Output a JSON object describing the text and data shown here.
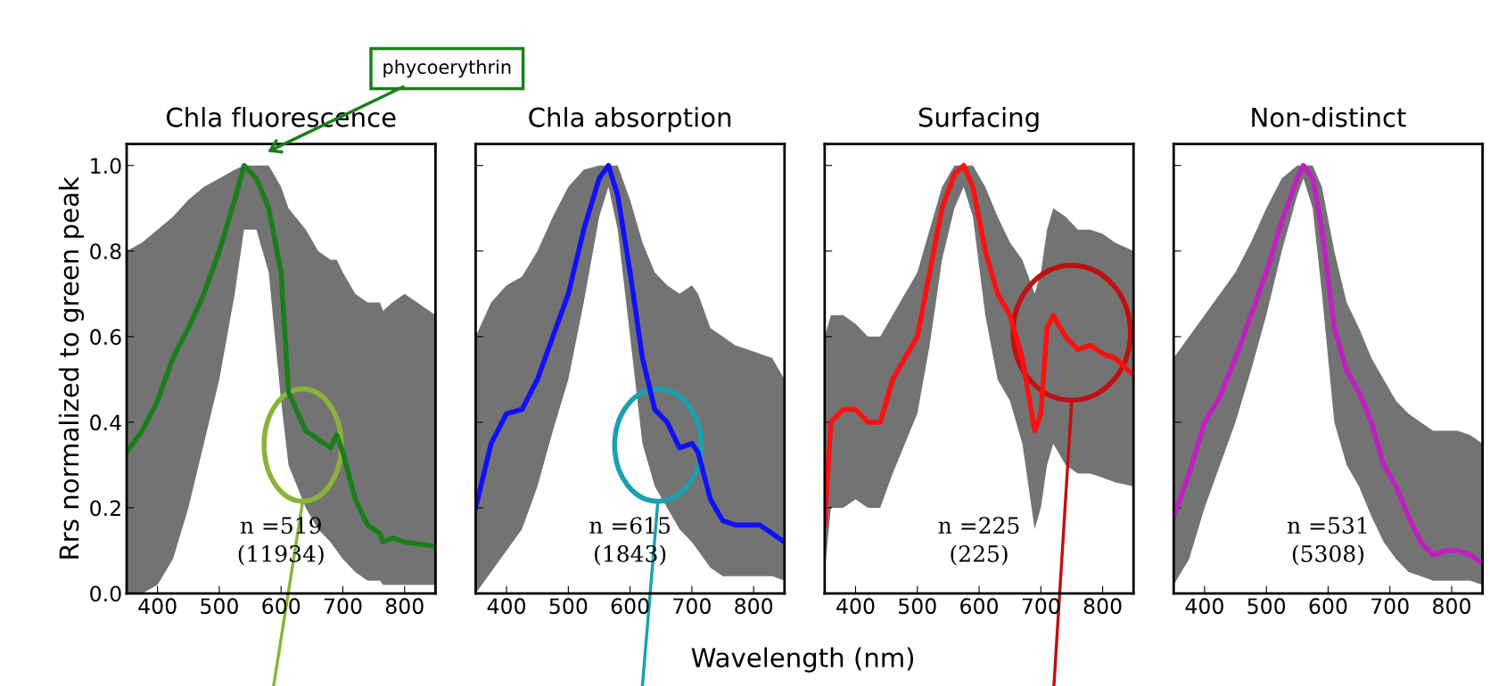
{
  "chart_data": [
    {
      "type": "line",
      "title": "Chla fluorescence",
      "ylabel": "Rrs normalized to green peak",
      "xlim": [
        350,
        850
      ],
      "ylim": [
        0,
        1.05
      ],
      "xticks": [
        400,
        500,
        600,
        700,
        800
      ],
      "yticks": [
        {
          "value": 0,
          "label": "0.0"
        },
        0.2,
        0.4,
        0.6,
        0.8,
        {
          "value": 1,
          "label": "1.0"
        }
      ],
      "grid": false,
      "legend": false,
      "annotations": [
        "n =519\n(11934)",
        "phycoerythrin"
      ],
      "series": [
        {
          "color": "#1a7f1a",
          "x": [
            350,
            375,
            400,
            425,
            450,
            475,
            500,
            525,
            540,
            560,
            580,
            600,
            612,
            640,
            660,
            680,
            690,
            700,
            720,
            740,
            760,
            765,
            780,
            800,
            850
          ],
          "values": [
            0.33,
            0.38,
            0.45,
            0.55,
            0.62,
            0.7,
            0.8,
            0.92,
            1.0,
            0.97,
            0.9,
            0.75,
            0.47,
            0.38,
            0.36,
            0.34,
            0.37,
            0.33,
            0.22,
            0.16,
            0.14,
            0.12,
            0.13,
            0.12,
            0.11
          ],
          "lower": [
            0.0,
            0.0,
            0.02,
            0.08,
            0.2,
            0.35,
            0.5,
            0.7,
            0.85,
            0.85,
            0.75,
            0.45,
            0.3,
            0.2,
            0.15,
            0.12,
            0.1,
            0.08,
            0.05,
            0.03,
            0.03,
            0.02,
            0.02,
            0.02,
            0.02
          ],
          "upper": [
            0.8,
            0.82,
            0.85,
            0.88,
            0.92,
            0.95,
            0.97,
            0.99,
            1.0,
            1.0,
            1.0,
            0.95,
            0.9,
            0.85,
            0.8,
            0.78,
            0.78,
            0.75,
            0.7,
            0.68,
            0.68,
            0.66,
            0.68,
            0.7,
            0.65
          ]
        }
      ]
    },
    {
      "type": "line",
      "title": "Chla absorption",
      "xlabel": "Wavelength (nm)",
      "xlim": [
        350,
        850
      ],
      "ylim": [
        0,
        1.05
      ],
      "xticks": [
        400,
        500,
        600,
        700,
        800
      ],
      "yticks": [
        {
          "value": 0,
          "label": null
        },
        {
          "value": 0.2,
          "label": null
        },
        {
          "value": 0.4,
          "label": null
        },
        {
          "value": 0.6,
          "label": null
        },
        {
          "value": 0.8,
          "label": null
        },
        {
          "value": 1,
          "label": null
        }
      ],
      "tick_labels": "x",
      "grid": false,
      "legend": false,
      "annotations": [
        "n =615\n(1843)"
      ],
      "series": [
        {
          "color": "#1010ff",
          "x": [
            350,
            375,
            400,
            425,
            450,
            475,
            500,
            525,
            550,
            565,
            580,
            600,
            620,
            640,
            660,
            680,
            700,
            710,
            730,
            750,
            770,
            790,
            810,
            830,
            850
          ],
          "values": [
            0.2,
            0.35,
            0.42,
            0.43,
            0.5,
            0.6,
            0.7,
            0.85,
            0.97,
            1.0,
            0.93,
            0.75,
            0.55,
            0.43,
            0.4,
            0.34,
            0.35,
            0.33,
            0.22,
            0.17,
            0.16,
            0.16,
            0.16,
            0.14,
            0.12
          ],
          "lower": [
            0.0,
            0.05,
            0.1,
            0.15,
            0.25,
            0.38,
            0.5,
            0.68,
            0.88,
            0.95,
            0.85,
            0.6,
            0.35,
            0.25,
            0.2,
            0.15,
            0.12,
            0.1,
            0.06,
            0.04,
            0.04,
            0.04,
            0.04,
            0.04,
            0.03
          ],
          "upper": [
            0.6,
            0.68,
            0.72,
            0.74,
            0.8,
            0.88,
            0.95,
            0.99,
            1.0,
            1.0,
            1.0,
            0.92,
            0.82,
            0.75,
            0.72,
            0.7,
            0.72,
            0.7,
            0.62,
            0.6,
            0.58,
            0.57,
            0.56,
            0.55,
            0.5
          ]
        }
      ]
    },
    {
      "type": "line",
      "title": "Surfacing",
      "xlim": [
        350,
        850
      ],
      "ylim": [
        0,
        1.05
      ],
      "xticks": [
        400,
        500,
        600,
        700,
        800
      ],
      "yticks": [
        {
          "value": 0,
          "label": null
        },
        {
          "value": 0.2,
          "label": null
        },
        {
          "value": 0.4,
          "label": null
        },
        {
          "value": 0.6,
          "label": null
        },
        {
          "value": 0.8,
          "label": null
        },
        {
          "value": 1,
          "label": null
        }
      ],
      "tick_labels": "x",
      "grid": false,
      "legend": false,
      "annotations": [
        "n =225\n(225)"
      ],
      "series": [
        {
          "color": "#ff1010",
          "x": [
            350,
            360,
            380,
            400,
            420,
            440,
            460,
            480,
            500,
            520,
            540,
            560,
            575,
            590,
            610,
            630,
            650,
            670,
            690,
            700,
            710,
            720,
            740,
            760,
            780,
            800,
            820,
            850
          ],
          "values": [
            0.16,
            0.4,
            0.43,
            0.43,
            0.4,
            0.4,
            0.5,
            0.55,
            0.6,
            0.75,
            0.9,
            0.98,
            1.0,
            0.95,
            0.8,
            0.7,
            0.65,
            0.55,
            0.38,
            0.42,
            0.62,
            0.65,
            0.6,
            0.57,
            0.58,
            0.56,
            0.55,
            0.51
          ],
          "lower": [
            0.05,
            0.2,
            0.2,
            0.22,
            0.2,
            0.2,
            0.28,
            0.35,
            0.42,
            0.58,
            0.78,
            0.9,
            0.95,
            0.88,
            0.65,
            0.5,
            0.45,
            0.35,
            0.15,
            0.2,
            0.3,
            0.35,
            0.3,
            0.28,
            0.28,
            0.27,
            0.26,
            0.25
          ],
          "upper": [
            0.6,
            0.65,
            0.65,
            0.63,
            0.6,
            0.6,
            0.65,
            0.7,
            0.75,
            0.85,
            0.95,
            1.0,
            1.0,
            1.0,
            0.95,
            0.88,
            0.82,
            0.78,
            0.7,
            0.75,
            0.85,
            0.9,
            0.88,
            0.85,
            0.85,
            0.84,
            0.82,
            0.8
          ]
        }
      ]
    },
    {
      "type": "line",
      "title": "Non-distinct",
      "xlim": [
        350,
        850
      ],
      "ylim": [
        0,
        1.05
      ],
      "xticks": [
        400,
        500,
        600,
        700,
        800
      ],
      "yticks": [
        {
          "value": 0,
          "label": null
        },
        {
          "value": 0.2,
          "label": null
        },
        {
          "value": 0.4,
          "label": null
        },
        {
          "value": 0.6,
          "label": null
        },
        {
          "value": 0.8,
          "label": null
        },
        {
          "value": 1,
          "label": null
        }
      ],
      "tick_labels": "x",
      "grid": false,
      "legend": false,
      "annotations": [
        "n =531\n(5308)"
      ],
      "series": [
        {
          "color": "#c020c0",
          "x": [
            350,
            375,
            400,
            425,
            450,
            475,
            500,
            525,
            550,
            560,
            575,
            590,
            610,
            630,
            650,
            670,
            690,
            710,
            730,
            750,
            770,
            790,
            810,
            830,
            850
          ],
          "values": [
            0.18,
            0.28,
            0.4,
            0.46,
            0.55,
            0.65,
            0.75,
            0.87,
            0.97,
            1.0,
            0.97,
            0.85,
            0.62,
            0.52,
            0.47,
            0.4,
            0.3,
            0.25,
            0.18,
            0.12,
            0.09,
            0.1,
            0.1,
            0.09,
            0.07
          ],
          "lower": [
            0.02,
            0.08,
            0.2,
            0.3,
            0.4,
            0.52,
            0.65,
            0.8,
            0.93,
            0.97,
            0.9,
            0.7,
            0.4,
            0.3,
            0.25,
            0.18,
            0.12,
            0.08,
            0.05,
            0.04,
            0.03,
            0.03,
            0.03,
            0.03,
            0.02
          ],
          "upper": [
            0.55,
            0.6,
            0.65,
            0.7,
            0.75,
            0.82,
            0.9,
            0.97,
            1.0,
            1.0,
            1.0,
            0.95,
            0.8,
            0.68,
            0.62,
            0.55,
            0.5,
            0.45,
            0.42,
            0.4,
            0.38,
            0.38,
            0.38,
            0.37,
            0.35
          ]
        }
      ]
    }
  ]
}
